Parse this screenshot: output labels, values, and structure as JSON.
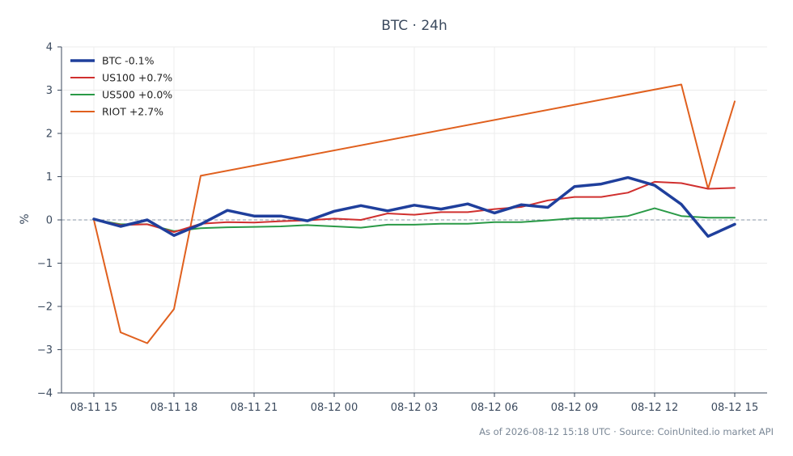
{
  "chart_data": {
    "type": "line",
    "title": "BTC · 24h",
    "ylabel": "%",
    "xlabel": "",
    "ylim": [
      -4,
      4
    ],
    "yticks": [
      -4,
      -3,
      -2,
      -1,
      0,
      1,
      2,
      3,
      4
    ],
    "ytick_labels": [
      "−4",
      "−3",
      "−2",
      "−1",
      "0",
      "1",
      "2",
      "3",
      "4"
    ],
    "x": [
      "08-11 15",
      "08-11 16",
      "08-11 17",
      "08-11 18",
      "08-11 19",
      "08-11 20",
      "08-11 21",
      "08-11 22",
      "08-11 23",
      "08-12 00",
      "08-12 01",
      "08-12 02",
      "08-12 03",
      "08-12 04",
      "08-12 05",
      "08-12 06",
      "08-12 07",
      "08-12 08",
      "08-12 09",
      "08-12 10",
      "08-12 11",
      "08-12 12",
      "08-12 13",
      "08-12 14",
      "08-12 15"
    ],
    "xtick_labels": [
      "08-11 15",
      "08-11 18",
      "08-11 21",
      "08-12 00",
      "08-12 03",
      "08-12 06",
      "08-12 09",
      "08-12 12",
      "08-12 15"
    ],
    "grid": true,
    "legend_position": "top-left",
    "zero_line": true,
    "series": [
      {
        "name": "BTC -0.1%",
        "color": "#1f3f9c",
        "x": [
          "08-11 15",
          "08-11 16",
          "08-11 17",
          "08-11 18",
          "08-11 19",
          "08-11 20",
          "08-11 21",
          "08-11 22",
          "08-11 23",
          "08-12 00",
          "08-12 01",
          "08-12 02",
          "08-12 03",
          "08-12 04",
          "08-12 05",
          "08-12 06",
          "08-12 07",
          "08-12 08",
          "08-12 09",
          "08-12 10",
          "08-12 11",
          "08-12 12",
          "08-12 13",
          "08-12 14",
          "08-12 15"
        ],
        "values": [
          0.02,
          -0.15,
          0.0,
          -0.36,
          -0.1,
          0.22,
          0.09,
          0.09,
          -0.02,
          0.2,
          0.33,
          0.21,
          0.34,
          0.25,
          0.37,
          0.16,
          0.35,
          0.29,
          0.77,
          0.83,
          0.98,
          0.8,
          0.36,
          -0.38,
          -0.1
        ]
      },
      {
        "name": "US100 +0.7%",
        "color": "#d0302f",
        "x": [
          "08-11 15",
          "08-11 16",
          "08-11 17",
          "08-11 18",
          "08-11 19",
          "08-11 20",
          "08-11 21",
          "08-11 22",
          "08-11 23",
          "08-12 00",
          "08-12 01",
          "08-12 02",
          "08-12 03",
          "08-12 04",
          "08-12 05",
          "08-12 06",
          "08-12 07",
          "08-12 08",
          "08-12 09",
          "08-12 10",
          "08-12 11",
          "08-12 12",
          "08-12 13",
          "08-12 14",
          "08-12 15"
        ],
        "values": [
          0.01,
          -0.12,
          -0.1,
          -0.28,
          -0.09,
          -0.05,
          -0.06,
          -0.03,
          -0.01,
          0.03,
          0.0,
          0.15,
          0.12,
          0.18,
          0.18,
          0.25,
          0.3,
          0.45,
          0.53,
          0.53,
          0.63,
          0.88,
          0.85,
          0.72,
          0.74
        ]
      },
      {
        "name": "US500 +0.0%",
        "color": "#2a9a47",
        "x": [
          "08-11 15",
          "08-11 16",
          "08-11 17",
          "08-11 18",
          "08-11 19",
          "08-11 20",
          "08-11 21",
          "08-11 22",
          "08-11 23",
          "08-12 00",
          "08-12 01",
          "08-12 02",
          "08-12 03",
          "08-12 04",
          "08-12 05",
          "08-12 06",
          "08-12 07",
          "08-12 08",
          "08-12 09",
          "08-12 10",
          "08-12 11",
          "08-12 12",
          "08-12 13",
          "08-12 14",
          "08-12 15"
        ],
        "values": [
          0.01,
          -0.1,
          -0.1,
          -0.26,
          -0.19,
          -0.17,
          -0.16,
          -0.15,
          -0.12,
          -0.15,
          -0.18,
          -0.11,
          -0.11,
          -0.09,
          -0.09,
          -0.05,
          -0.05,
          -0.01,
          0.04,
          0.04,
          0.09,
          0.27,
          0.09,
          0.05,
          0.05
        ]
      },
      {
        "name": "RIOT +2.7%",
        "color": "#e0601e",
        "x": [
          "08-11 15",
          "08-11 16",
          "08-11 17",
          "08-11 18",
          "08-11 19",
          "08-12 13",
          "08-12 14",
          "08-12 15"
        ],
        "values": [
          0.0,
          -2.6,
          -2.85,
          -2.06,
          1.02,
          3.13,
          0.72,
          2.74
        ]
      }
    ],
    "footer": "As of 2026-08-12 15:18 UTC · Source: CoinUnited.io market API"
  },
  "colors": {
    "grid": "#ececec",
    "axis": "#3b4a5e",
    "zero_line": "#8a97a8"
  }
}
